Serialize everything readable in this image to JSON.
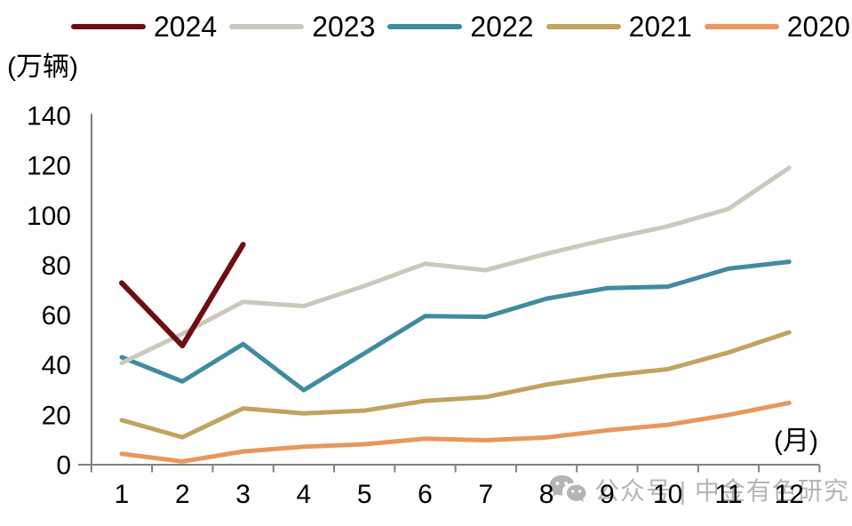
{
  "page": {
    "background": "#ffffff",
    "text_color": "#000000"
  },
  "watermark": {
    "icon": "wechat-icon",
    "text": "公众号 | 中金有色研究",
    "color": "#b5b5b5"
  },
  "chart_data": {
    "type": "line",
    "title": "",
    "ylabel": "(万辆)",
    "xlabel": "(月)",
    "x": [
      1,
      2,
      3,
      4,
      5,
      6,
      7,
      8,
      9,
      10,
      11,
      12
    ],
    "x_tick_labels": [
      "1",
      "2",
      "3",
      "4",
      "5",
      "6",
      "7",
      "8",
      "9",
      "10",
      "11",
      "12"
    ],
    "ylim": [
      0,
      140
    ],
    "yticks": [
      0,
      20,
      40,
      60,
      80,
      100,
      120,
      140
    ],
    "grid": false,
    "legend_position": "top",
    "axis_color": "#808080",
    "tick_label_color": "#000000",
    "series": [
      {
        "name": "2024",
        "color": "#6E0E12",
        "line_width": 6,
        "values": [
          72.9,
          47.7,
          88.3
        ]
      },
      {
        "name": "2023",
        "color": "#C9C9BD",
        "line_width": 5,
        "values": [
          40.8,
          52.5,
          65.3,
          63.6,
          71.7,
          80.6,
          78.0,
          84.6,
          90.4,
          95.6,
          102.6,
          119.1
        ]
      },
      {
        "name": "2022",
        "color": "#3F8CA1",
        "line_width": 5,
        "values": [
          43.1,
          33.4,
          48.4,
          29.9,
          44.7,
          59.6,
          59.3,
          66.6,
          70.8,
          71.4,
          78.6,
          81.4
        ]
      },
      {
        "name": "2021",
        "color": "#C2A35F",
        "line_width": 5,
        "values": [
          17.9,
          11.0,
          22.6,
          20.6,
          21.7,
          25.6,
          27.1,
          32.1,
          35.7,
          38.3,
          45.0,
          53.1
        ]
      },
      {
        "name": "2020",
        "color": "#E8975E",
        "line_width": 5,
        "values": [
          4.4,
          1.3,
          5.3,
          7.2,
          8.2,
          10.4,
          9.8,
          10.9,
          13.8,
          16.0,
          20.0,
          24.8
        ]
      }
    ]
  }
}
